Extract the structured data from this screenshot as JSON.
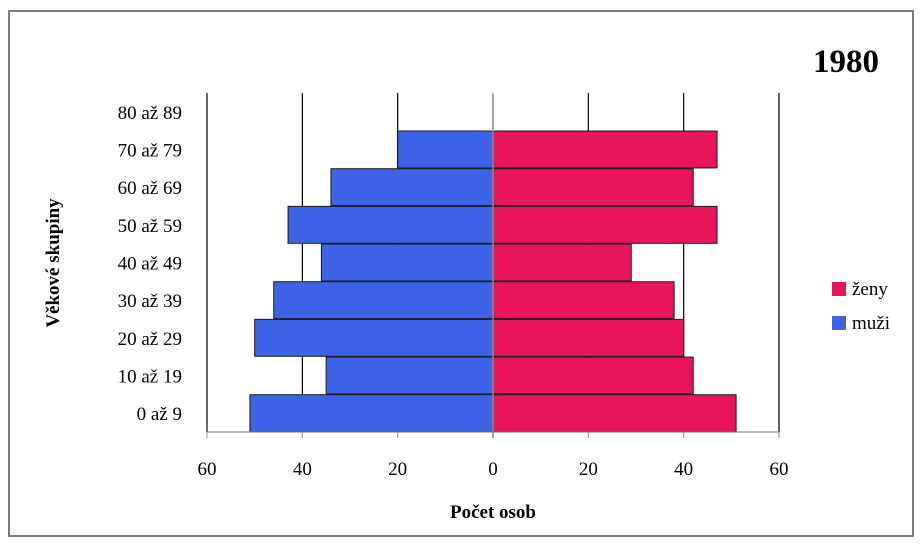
{
  "chart_data": {
    "type": "bar",
    "title": "1980",
    "xlabel": "Počet osob",
    "ylabel": "Věkové skupiny",
    "categories": [
      "0 až 9",
      "10 až 19",
      "20 až 29",
      "30 až 39",
      "40 až 49",
      "50 až 59",
      "60 až 69",
      "70 až 79",
      "80 až 89"
    ],
    "series": [
      {
        "name": "muži",
        "values": [
          51,
          35,
          50,
          46,
          36,
          43,
          34,
          20,
          0
        ],
        "color": "#3f63e6"
      },
      {
        "name": "ženy",
        "values": [
          51,
          42,
          40,
          38,
          29,
          47,
          42,
          47,
          0
        ],
        "color": "#e8155a"
      }
    ],
    "xlim": [
      -60,
      60
    ],
    "xticks": [
      60,
      40,
      20,
      0,
      20,
      40,
      60
    ],
    "grid": true,
    "legend": "right",
    "legend_order": [
      "ženy",
      "muži"
    ]
  }
}
